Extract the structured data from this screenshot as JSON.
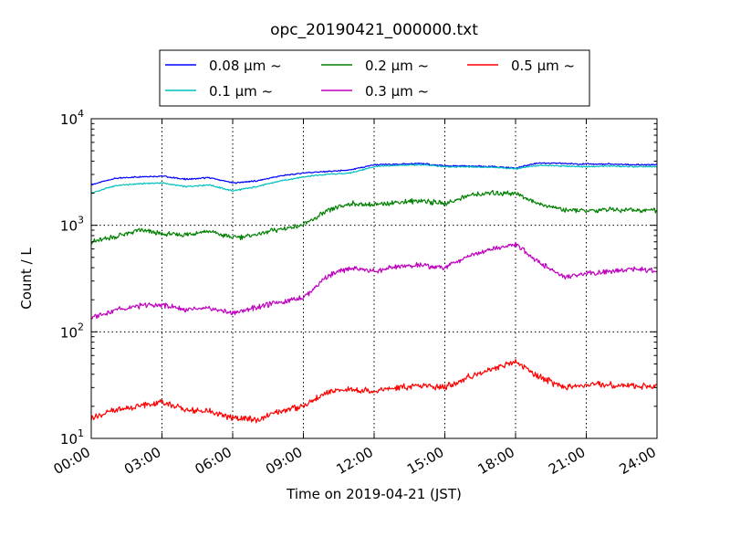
{
  "chart_data": {
    "type": "line",
    "title": "opc_20190421_000000.txt",
    "xlabel": "Time on 2019-04-21 (JST)",
    "ylabel": "Count / L",
    "yscale": "log",
    "ylim": [
      10,
      10000
    ],
    "xlim": [
      0,
      24
    ],
    "xtick_labels": [
      "00:00",
      "03:00",
      "06:00",
      "09:00",
      "12:00",
      "15:00",
      "18:00",
      "21:00",
      "24:00"
    ],
    "ytick_labels": [
      {
        "base": "10",
        "exp": "1"
      },
      {
        "base": "10",
        "exp": "2"
      },
      {
        "base": "10",
        "exp": "3"
      },
      {
        "base": "10",
        "exp": "4"
      }
    ],
    "grid": true,
    "legend_position": "top",
    "series": [
      {
        "name": "0.08 μm ~",
        "color": "#0000ff",
        "x": [
          0,
          1,
          2,
          3,
          4,
          5,
          6,
          7,
          8,
          9,
          10,
          11,
          12,
          13,
          14,
          15,
          16,
          17,
          18,
          19,
          20,
          21,
          22,
          23,
          24
        ],
        "y": [
          2400,
          2750,
          2850,
          2900,
          2700,
          2800,
          2500,
          2600,
          2900,
          3100,
          3200,
          3300,
          3700,
          3750,
          3800,
          3600,
          3600,
          3550,
          3450,
          3850,
          3800,
          3750,
          3750,
          3700,
          3700
        ]
      },
      {
        "name": "0.1 μm ~",
        "color": "#00bfbf",
        "x": [
          0,
          1,
          2,
          3,
          4,
          5,
          6,
          7,
          8,
          9,
          10,
          11,
          12,
          13,
          14,
          15,
          16,
          17,
          18,
          19,
          20,
          21,
          22,
          23,
          24
        ],
        "y": [
          2000,
          2350,
          2450,
          2500,
          2300,
          2400,
          2100,
          2300,
          2600,
          2850,
          3000,
          3100,
          3550,
          3650,
          3700,
          3550,
          3550,
          3500,
          3400,
          3650,
          3600,
          3550,
          3600,
          3550,
          3550
        ]
      },
      {
        "name": "0.2 μm ~",
        "color": "#008000",
        "x": [
          0,
          1,
          2,
          3,
          4,
          5,
          6,
          7,
          8,
          9,
          10,
          11,
          12,
          13,
          14,
          15,
          16,
          17,
          18,
          19,
          20,
          21,
          22,
          23,
          24
        ],
        "y": [
          700,
          780,
          900,
          830,
          820,
          880,
          760,
          820,
          920,
          1000,
          1350,
          1600,
          1550,
          1650,
          1700,
          1600,
          1900,
          2000,
          2000,
          1600,
          1400,
          1350,
          1400,
          1400,
          1380
        ]
      },
      {
        "name": "0.3 μm ~",
        "color": "#bf00bf",
        "x": [
          0,
          1,
          2,
          3,
          4,
          5,
          6,
          7,
          8,
          9,
          10,
          11,
          12,
          13,
          14,
          15,
          16,
          17,
          18,
          19,
          20,
          21,
          22,
          23,
          24
        ],
        "y": [
          135,
          160,
          175,
          180,
          160,
          165,
          150,
          170,
          190,
          210,
          330,
          400,
          370,
          410,
          420,
          400,
          520,
          600,
          660,
          450,
          330,
          350,
          370,
          390,
          375
        ]
      },
      {
        "name": "0.5 μm ~",
        "color": "#ff0000",
        "x": [
          0,
          1,
          2,
          3,
          4,
          5,
          6,
          7,
          8,
          9,
          10,
          11,
          12,
          13,
          14,
          15,
          16,
          17,
          18,
          19,
          20,
          21,
          22,
          23,
          24
        ],
        "y": [
          15.5,
          18.5,
          20,
          22,
          18.5,
          18,
          15.5,
          15,
          18,
          20,
          27,
          29,
          28,
          30,
          31,
          30,
          38,
          45,
          52,
          38,
          30,
          32,
          32,
          31,
          31
        ]
      }
    ]
  }
}
